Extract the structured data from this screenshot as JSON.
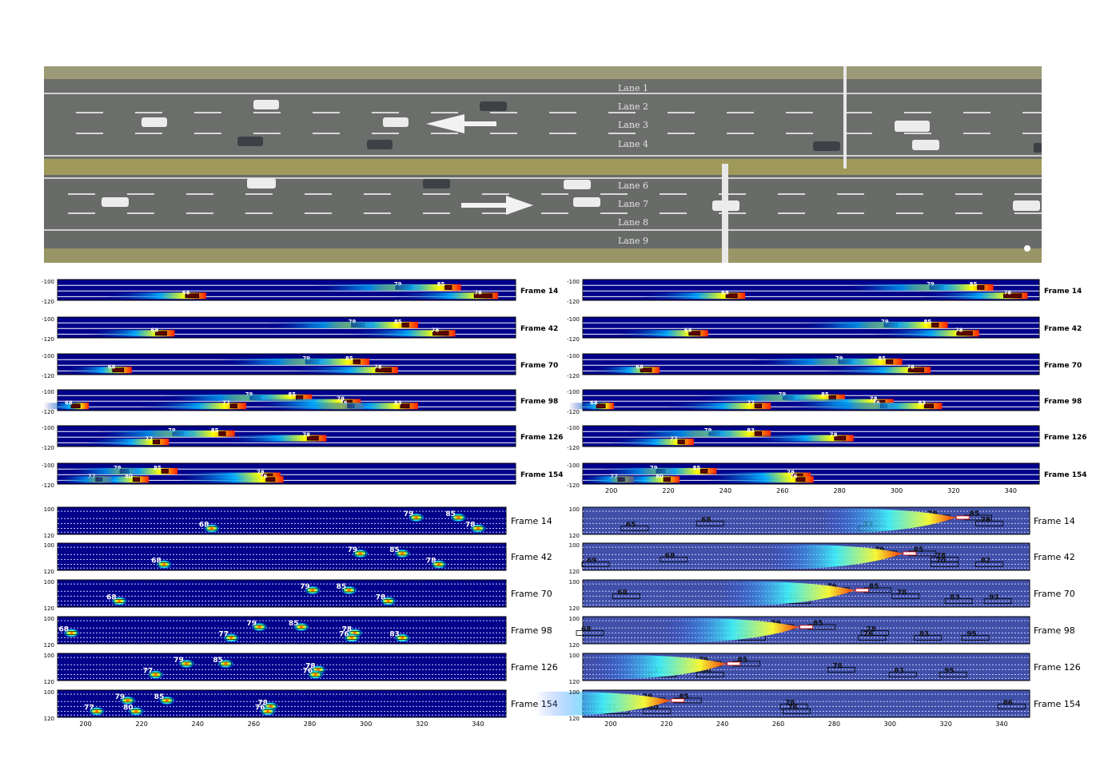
{
  "aerial": {
    "lane_labels": [
      "Lane 1",
      "Lane 2",
      "Lane 3",
      "Lane 4",
      "Lane 6",
      "Lane 7",
      "Lane 8",
      "Lane 9"
    ]
  },
  "chart_data": [
    {
      "type": "heatmap",
      "title": "",
      "xlabel": "",
      "ylabel": "",
      "colormap": "jet",
      "grid": false,
      "xlim": [
        190,
        350
      ],
      "ylim": [
        -120,
        -100
      ],
      "x_ticks": [],
      "y_ticks": [
        -100,
        -120
      ],
      "frames": [
        {
          "label": "Frame 14",
          "vehicles": [
            {
              "id": "68",
              "x": 238,
              "lane": "bottom",
              "len": 12
            },
            {
              "id": "79",
              "x": 312,
              "lane": "top",
              "len": 14
            },
            {
              "id": "85",
              "x": 327,
              "lane": "top",
              "len": 6
            },
            {
              "id": "78",
              "x": 340,
              "lane": "bottom",
              "len": 16
            }
          ]
        },
        {
          "label": "Frame 42",
          "vehicles": [
            {
              "id": "68",
              "x": 227,
              "lane": "bottom",
              "len": 10
            },
            {
              "id": "79",
              "x": 296,
              "lane": "top",
              "len": 12
            },
            {
              "id": "85",
              "x": 312,
              "lane": "top",
              "len": 6
            },
            {
              "id": "78",
              "x": 325,
              "lane": "bottom",
              "len": 14
            }
          ]
        },
        {
          "label": "Frame 70",
          "vehicles": [
            {
              "id": "68",
              "x": 212,
              "lane": "bottom",
              "len": 10
            },
            {
              "id": "79",
              "x": 280,
              "lane": "top",
              "len": 12
            },
            {
              "id": "85",
              "x": 295,
              "lane": "top",
              "len": 6
            },
            {
              "id": "78",
              "x": 305,
              "lane": "bottom",
              "len": 14
            }
          ]
        },
        {
          "label": "Frame 98",
          "vehicles": [
            {
              "id": "68",
              "x": 197,
              "lane": "bottom",
              "len": 8
            },
            {
              "id": "79",
              "x": 260,
              "lane": "top",
              "len": 10
            },
            {
              "id": "85",
              "x": 275,
              "lane": "top",
              "len": 6
            },
            {
              "id": "77",
              "x": 252,
              "lane": "bottom",
              "len": 6
            },
            {
              "id": "78",
              "x": 292,
              "lane": "mid",
              "len": 8
            },
            {
              "id": "76",
              "x": 293,
              "lane": "bottom",
              "len": 6
            },
            {
              "id": "83",
              "x": 312,
              "lane": "bottom",
              "len": 8
            }
          ]
        },
        {
          "label": "Frame 126",
          "vehicles": [
            {
              "id": "79",
              "x": 233,
              "lane": "top",
              "len": 10
            },
            {
              "id": "85",
              "x": 248,
              "lane": "top",
              "len": 6
            },
            {
              "id": "77",
              "x": 225,
              "lane": "bottom",
              "len": 6
            },
            {
              "id": "78",
              "x": 280,
              "lane": "mid",
              "len": 10
            }
          ]
        },
        {
          "label": "Frame 154",
          "vehicles": [
            {
              "id": "79",
              "x": 214,
              "lane": "top",
              "len": 8
            },
            {
              "id": "85",
              "x": 228,
              "lane": "top",
              "len": 6
            },
            {
              "id": "77",
              "x": 205,
              "lane": "bottom",
              "len": 6
            },
            {
              "id": "80",
              "x": 218,
              "lane": "bottom",
              "len": 6
            },
            {
              "id": "78",
              "x": 264,
              "lane": "mid",
              "len": 10
            },
            {
              "id": "76",
              "x": 265,
              "lane": "bottom",
              "len": 8
            }
          ]
        }
      ]
    },
    {
      "type": "heatmap",
      "title": "",
      "xlabel": "",
      "ylabel": "",
      "colormap": "jet",
      "grid": false,
      "xlim": [
        190,
        350
      ],
      "ylim": [
        -120,
        -100
      ],
      "x_ticks": [
        200,
        220,
        240,
        260,
        280,
        300,
        320,
        340
      ],
      "y_ticks": [
        -100,
        -120
      ],
      "frames": [
        {
          "label": "Frame 14",
          "vehicles": [
            {
              "id": "68",
              "x": 243,
              "lane": "bottom",
              "len": 10
            },
            {
              "id": "79",
              "x": 315,
              "lane": "top",
              "len": 12
            },
            {
              "id": "85",
              "x": 330,
              "lane": "top",
              "len": 6
            },
            {
              "id": "78",
              "x": 342,
              "lane": "bottom",
              "len": 16
            }
          ]
        },
        {
          "label": "Frame 42",
          "vehicles": [
            {
              "id": "68",
              "x": 230,
              "lane": "bottom",
              "len": 10
            },
            {
              "id": "79",
              "x": 299,
              "lane": "top",
              "len": 12
            },
            {
              "id": "85",
              "x": 314,
              "lane": "top",
              "len": 6
            },
            {
              "id": "78",
              "x": 325,
              "lane": "bottom",
              "len": 14
            }
          ]
        },
        {
          "label": "Frame 70",
          "vehicles": [
            {
              "id": "68",
              "x": 213,
              "lane": "bottom",
              "len": 10
            },
            {
              "id": "79",
              "x": 283,
              "lane": "top",
              "len": 12
            },
            {
              "id": "85",
              "x": 298,
              "lane": "top",
              "len": 6
            },
            {
              "id": "78",
              "x": 308,
              "lane": "bottom",
              "len": 14
            }
          ]
        },
        {
          "label": "Frame 98",
          "vehicles": [
            {
              "id": "68",
              "x": 197,
              "lane": "bottom",
              "len": 8
            },
            {
              "id": "79",
              "x": 263,
              "lane": "top",
              "len": 10
            },
            {
              "id": "85",
              "x": 278,
              "lane": "top",
              "len": 6
            },
            {
              "id": "77",
              "x": 252,
              "lane": "bottom",
              "len": 6
            },
            {
              "id": "78",
              "x": 295,
              "lane": "mid",
              "len": 8
            },
            {
              "id": "76",
              "x": 296,
              "lane": "bottom",
              "len": 6
            },
            {
              "id": "83",
              "x": 312,
              "lane": "bottom",
              "len": 8
            }
          ]
        },
        {
          "label": "Frame 126",
          "vehicles": [
            {
              "id": "79",
              "x": 237,
              "lane": "top",
              "len": 10
            },
            {
              "id": "83",
              "x": 252,
              "lane": "top",
              "len": 6
            },
            {
              "id": "77",
              "x": 225,
              "lane": "bottom",
              "len": 6
            },
            {
              "id": "78",
              "x": 281,
              "lane": "mid",
              "len": 10
            }
          ]
        },
        {
          "label": "Frame 154",
          "vehicles": [
            {
              "id": "79",
              "x": 218,
              "lane": "top",
              "len": 8
            },
            {
              "id": "85",
              "x": 233,
              "lane": "top",
              "len": 6
            },
            {
              "id": "77",
              "x": 204,
              "lane": "bottom",
              "len": 6
            },
            {
              "id": "80",
              "x": 220,
              "lane": "bottom",
              "len": 6
            },
            {
              "id": "78",
              "x": 266,
              "lane": "mid",
              "len": 10
            },
            {
              "id": "76",
              "x": 267,
              "lane": "bottom",
              "len": 8
            }
          ]
        }
      ]
    },
    {
      "type": "heatmap",
      "title": "",
      "xlabel": "",
      "ylabel": "",
      "colormap": "jet",
      "grid": false,
      "xlim": [
        190,
        350
      ],
      "ylim": [
        100,
        120
      ],
      "x_ticks": [
        200,
        220,
        240,
        260,
        280,
        300,
        320,
        340
      ],
      "y_ticks": [
        100,
        120
      ],
      "frames": [
        {
          "label": "Frame 14",
          "vehicles": [
            {
              "id": "68",
              "x": 245,
              "lane": "bottom"
            },
            {
              "id": "79",
              "x": 318,
              "lane": "top"
            },
            {
              "id": "85",
              "x": 333,
              "lane": "top"
            },
            {
              "id": "78",
              "x": 340,
              "lane": "bottom"
            }
          ]
        },
        {
          "label": "Frame 42",
          "vehicles": [
            {
              "id": "68",
              "x": 228,
              "lane": "bottom"
            },
            {
              "id": "79",
              "x": 298,
              "lane": "top"
            },
            {
              "id": "85",
              "x": 313,
              "lane": "top"
            },
            {
              "id": "78",
              "x": 326,
              "lane": "bottom"
            }
          ]
        },
        {
          "label": "Frame 70",
          "vehicles": [
            {
              "id": "68",
              "x": 212,
              "lane": "bottom"
            },
            {
              "id": "79",
              "x": 281,
              "lane": "top"
            },
            {
              "id": "85",
              "x": 294,
              "lane": "top"
            },
            {
              "id": "78",
              "x": 308,
              "lane": "bottom"
            }
          ]
        },
        {
          "label": "Frame 98",
          "vehicles": [
            {
              "id": "68",
              "x": 195,
              "lane": "mid"
            },
            {
              "id": "79",
              "x": 262,
              "lane": "top"
            },
            {
              "id": "85",
              "x": 277,
              "lane": "top"
            },
            {
              "id": "77",
              "x": 252,
              "lane": "bottom"
            },
            {
              "id": "78",
              "x": 296,
              "lane": "mid"
            },
            {
              "id": "76",
              "x": 295,
              "lane": "bottom"
            },
            {
              "id": "83",
              "x": 313,
              "lane": "bottom"
            }
          ]
        },
        {
          "label": "Frame 126",
          "vehicles": [
            {
              "id": "79",
              "x": 236,
              "lane": "top"
            },
            {
              "id": "85",
              "x": 250,
              "lane": "top"
            },
            {
              "id": "77",
              "x": 225,
              "lane": "bottom"
            },
            {
              "id": "78",
              "x": 283,
              "lane": "mid"
            },
            {
              "id": "76",
              "x": 282,
              "lane": "bottom"
            }
          ]
        },
        {
          "label": "Frame 154",
          "vehicles": [
            {
              "id": "79",
              "x": 215,
              "lane": "top"
            },
            {
              "id": "85",
              "x": 229,
              "lane": "top"
            },
            {
              "id": "77",
              "x": 204,
              "lane": "bottom"
            },
            {
              "id": "80",
              "x": 218,
              "lane": "bottom"
            },
            {
              "id": "78",
              "x": 266,
              "lane": "mid"
            },
            {
              "id": "76",
              "x": 265,
              "lane": "bottom"
            }
          ]
        }
      ]
    },
    {
      "type": "heatmap",
      "title": "",
      "xlabel": "",
      "ylabel": "",
      "colormap": "jet",
      "grid": false,
      "xlim": [
        190,
        350
      ],
      "ylim": [
        100,
        120
      ],
      "x_ticks": [
        200,
        220,
        240,
        260,
        280,
        300,
        320,
        340
      ],
      "y_ticks": [
        100,
        120
      ],
      "frames": [
        {
          "label": "Frame 14",
          "vehicles": [
            {
              "id": "65",
              "x": 210,
              "lane": "bottom"
            },
            {
              "id": "68",
              "x": 237,
              "lane": "mid"
            },
            {
              "id": "79",
              "x": 318,
              "lane": "top"
            },
            {
              "id": "85",
              "x": 333,
              "lane": "top"
            },
            {
              "id": "78",
              "x": 337,
              "lane": "mid"
            },
            {
              "id": "77",
              "x": 295,
              "lane": "bottom"
            }
          ]
        },
        {
          "label": "Frame 42",
          "vehicles": [
            {
              "id": "69",
              "x": 196,
              "lane": "bottom"
            },
            {
              "id": "68",
              "x": 224,
              "lane": "mid"
            },
            {
              "id": "79",
              "x": 299,
              "lane": "top"
            },
            {
              "id": "85",
              "x": 313,
              "lane": "top"
            },
            {
              "id": "78",
              "x": 321,
              "lane": "mid"
            },
            {
              "id": "70",
              "x": 321,
              "lane": "bottom"
            },
            {
              "id": "82",
              "x": 337,
              "lane": "bottom"
            }
          ]
        },
        {
          "label": "Frame 70",
          "vehicles": [
            {
              "id": "68",
              "x": 207,
              "lane": "mid"
            },
            {
              "id": "79",
              "x": 282,
              "lane": "top"
            },
            {
              "id": "85",
              "x": 297,
              "lane": "top"
            },
            {
              "id": "77",
              "x": 268,
              "lane": "bottom"
            },
            {
              "id": "78",
              "x": 307,
              "lane": "mid"
            },
            {
              "id": "83",
              "x": 326,
              "lane": "bottom"
            },
            {
              "id": "93",
              "x": 340,
              "lane": "bottom"
            }
          ]
        },
        {
          "label": "Frame 98",
          "vehicles": [
            {
              "id": "68",
              "x": 194,
              "lane": "mid"
            },
            {
              "id": "79",
              "x": 262,
              "lane": "top"
            },
            {
              "id": "85",
              "x": 277,
              "lane": "top"
            },
            {
              "id": "77",
              "x": 252,
              "lane": "bottom"
            },
            {
              "id": "78",
              "x": 296,
              "lane": "mid"
            },
            {
              "id": "76",
              "x": 295,
              "lane": "bottom"
            },
            {
              "id": "83",
              "x": 315,
              "lane": "bottom"
            },
            {
              "id": "95",
              "x": 332,
              "lane": "bottom"
            }
          ]
        },
        {
          "label": "Frame 126",
          "vehicles": [
            {
              "id": "79",
              "x": 236,
              "lane": "top"
            },
            {
              "id": "85",
              "x": 250,
              "lane": "top"
            },
            {
              "id": "77",
              "x": 220,
              "lane": "bottom"
            },
            {
              "id": "80",
              "x": 237,
              "lane": "bottom"
            },
            {
              "id": "78",
              "x": 284,
              "lane": "mid"
            },
            {
              "id": "83",
              "x": 306,
              "lane": "bottom"
            },
            {
              "id": "95",
              "x": 324,
              "lane": "bottom"
            }
          ]
        },
        {
          "label": "Frame 154",
          "vehicles": [
            {
              "id": "79",
              "x": 216,
              "lane": "top"
            },
            {
              "id": "85",
              "x": 229,
              "lane": "top"
            },
            {
              "id": "77",
              "x": 203,
              "lane": "bottom"
            },
            {
              "id": "80",
              "x": 218,
              "lane": "bottom"
            },
            {
              "id": "78",
              "x": 267,
              "lane": "mid"
            },
            {
              "id": "76",
              "x": 268,
              "lane": "bottom"
            },
            {
              "id": "86",
              "x": 345,
              "lane": "mid"
            }
          ]
        }
      ]
    }
  ]
}
